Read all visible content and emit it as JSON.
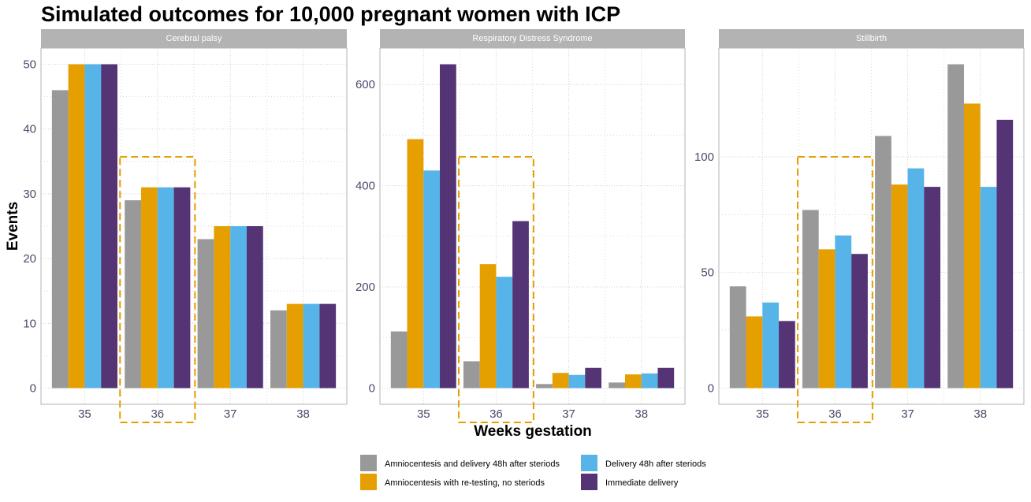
{
  "title": "Simulated outcomes for 10,000 pregnant women with ICP",
  "colors": {
    "amnio_delivery_48h": "#999999",
    "amnio_retesting": "#e69f00",
    "delivery_48h": "#56b4e9",
    "immediate": "#543475",
    "highlight": "#e69f00",
    "strip": "#b3b3b3",
    "grid": "#d0d0d0"
  },
  "chart_data": {
    "type": "bar",
    "title": "Simulated outcomes for 10,000 pregnant women with ICP",
    "xlabel": "Weeks gestation",
    "ylabel": "Events",
    "legend_position": "bottom",
    "grid": true,
    "highlighted_category": "36",
    "series_names": [
      "Amniocentesis and delivery 48h after steriods",
      "Amniocentesis with re-testing, no steriods",
      "Delivery 48h after steriods",
      "Immediate delivery"
    ],
    "panels": [
      {
        "title": "Cerebral palsy",
        "categories": [
          "35",
          "36",
          "37",
          "38"
        ],
        "yticks": [
          0,
          10,
          20,
          30,
          40,
          50
        ],
        "ylim": [
          -2.5,
          52.5
        ],
        "series": [
          {
            "name": "Amniocentesis and delivery 48h after steriods",
            "values": [
              46,
              29,
              23,
              12
            ]
          },
          {
            "name": "Amniocentesis with re-testing, no steriods",
            "values": [
              50,
              31,
              25,
              13
            ]
          },
          {
            "name": "Delivery 48h after steriods",
            "values": [
              50,
              31,
              25,
              13
            ]
          },
          {
            "name": "Immediate delivery",
            "values": [
              50,
              31,
              25,
              13
            ]
          }
        ]
      },
      {
        "title": "Respiratory Distress Syndrome",
        "categories": [
          "35",
          "36",
          "37",
          "38"
        ],
        "yticks": [
          0,
          200,
          400,
          600
        ],
        "ylim": [
          -32,
          672
        ],
        "series": [
          {
            "name": "Amniocentesis and delivery 48h after steriods",
            "values": [
              112,
              53,
              8,
              11
            ]
          },
          {
            "name": "Amniocentesis with re-testing, no steriods",
            "values": [
              492,
              245,
              30,
              27
            ]
          },
          {
            "name": "Delivery 48h after steriods",
            "values": [
              430,
              220,
              26,
              29
            ]
          },
          {
            "name": "Immediate delivery",
            "values": [
              640,
              330,
              40,
              40
            ]
          }
        ]
      },
      {
        "title": "Stillbirth",
        "categories": [
          "35",
          "36",
          "37",
          "38"
        ],
        "yticks": [
          0,
          50,
          100
        ],
        "ylim": [
          -7,
          147
        ],
        "series": [
          {
            "name": "Amniocentesis and delivery 48h after steriods",
            "values": [
              44,
              77,
              109,
              140
            ]
          },
          {
            "name": "Amniocentesis with re-testing, no steriods",
            "values": [
              31,
              60,
              88,
              123
            ]
          },
          {
            "name": "Delivery 48h after steriods",
            "values": [
              37,
              66,
              95,
              87
            ]
          },
          {
            "name": "Immediate delivery",
            "values": [
              29,
              58,
              87,
              116
            ]
          }
        ]
      }
    ]
  },
  "legend": {
    "items": [
      {
        "label": "Amniocentesis and delivery 48h after steriods",
        "color": "#999999"
      },
      {
        "label": "Amniocentesis with re-testing, no steriods",
        "color": "#e69f00"
      },
      {
        "label": "Delivery 48h after steriods",
        "color": "#56b4e9"
      },
      {
        "label": "Immediate delivery",
        "color": "#543475"
      }
    ]
  }
}
